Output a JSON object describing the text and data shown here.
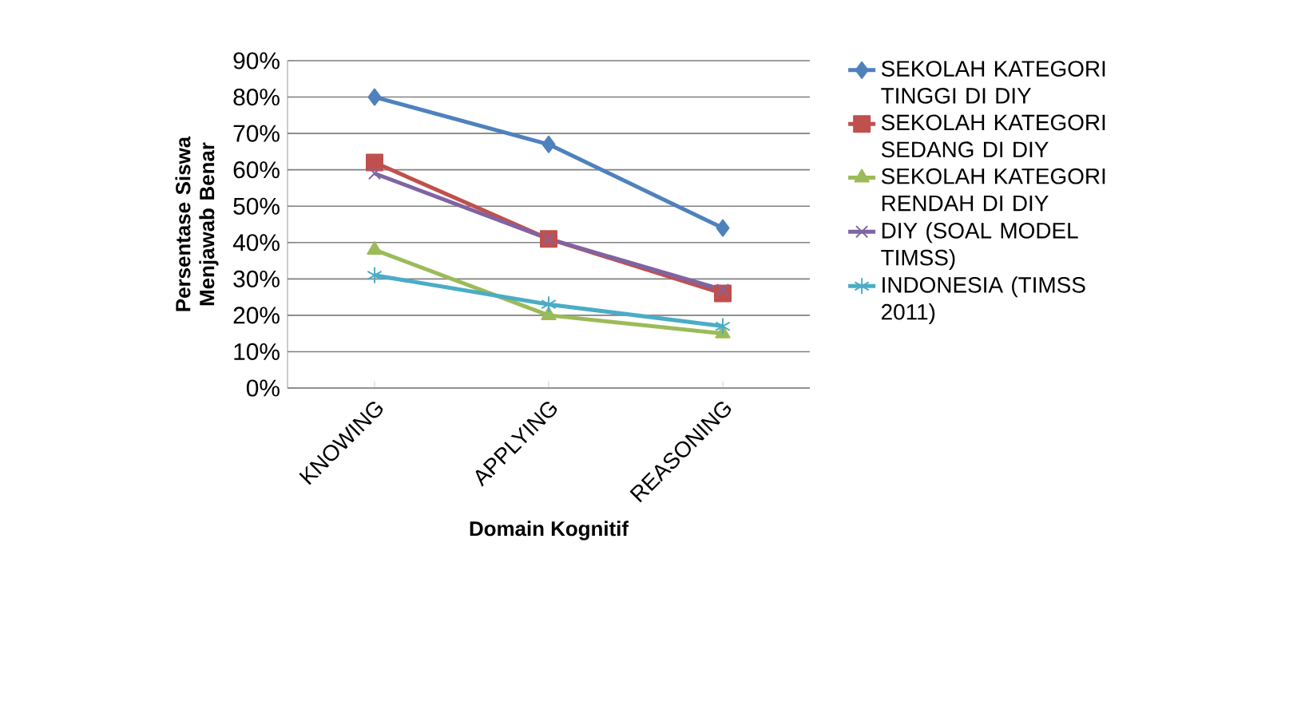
{
  "chart_data": {
    "type": "line",
    "xlabel": "Domain Kognitif",
    "ylabel": "Persentase Siswa Menjawab Benar",
    "categories": [
      "KNOWING",
      "APPLYING",
      "REASONING"
    ],
    "series": [
      {
        "name": "SEKOLAH KATEGORI TINGGI DI DIY",
        "color": "#4f81bd",
        "marker": "diamond",
        "values": [
          80,
          67,
          44
        ]
      },
      {
        "name": "SEKOLAH KATEGORI SEDANG DI DIY",
        "color": "#c0504d",
        "marker": "square",
        "values": [
          62,
          41,
          26
        ]
      },
      {
        "name": "SEKOLAH KATEGORI RENDAH DI DIY",
        "color": "#9bbb59",
        "marker": "triangle",
        "values": [
          38,
          20,
          15
        ]
      },
      {
        "name": "DIY (SOAL MODEL TIMSS)",
        "color": "#8064a2",
        "marker": "cross",
        "values": [
          59,
          41,
          27
        ]
      },
      {
        "name": "INDONESIA (TIMSS 2011)",
        "color": "#4bacc6",
        "marker": "cross",
        "values": [
          31,
          23,
          17
        ]
      }
    ],
    "ylim": [
      0,
      90
    ],
    "yticks": [
      {
        "value": 0,
        "label": "0%"
      },
      {
        "value": 10,
        "label": "10%"
      },
      {
        "value": 20,
        "label": "20%"
      },
      {
        "value": 30,
        "label": "30%"
      },
      {
        "value": 40,
        "label": "40%"
      },
      {
        "value": 50,
        "label": "50%"
      },
      {
        "value": 60,
        "label": "60%"
      },
      {
        "value": 70,
        "label": "70%"
      },
      {
        "value": 80,
        "label": "80%"
      },
      {
        "value": 90,
        "label": "90%"
      }
    ],
    "grid": "y",
    "legend": "right",
    "line_style": "solid"
  }
}
